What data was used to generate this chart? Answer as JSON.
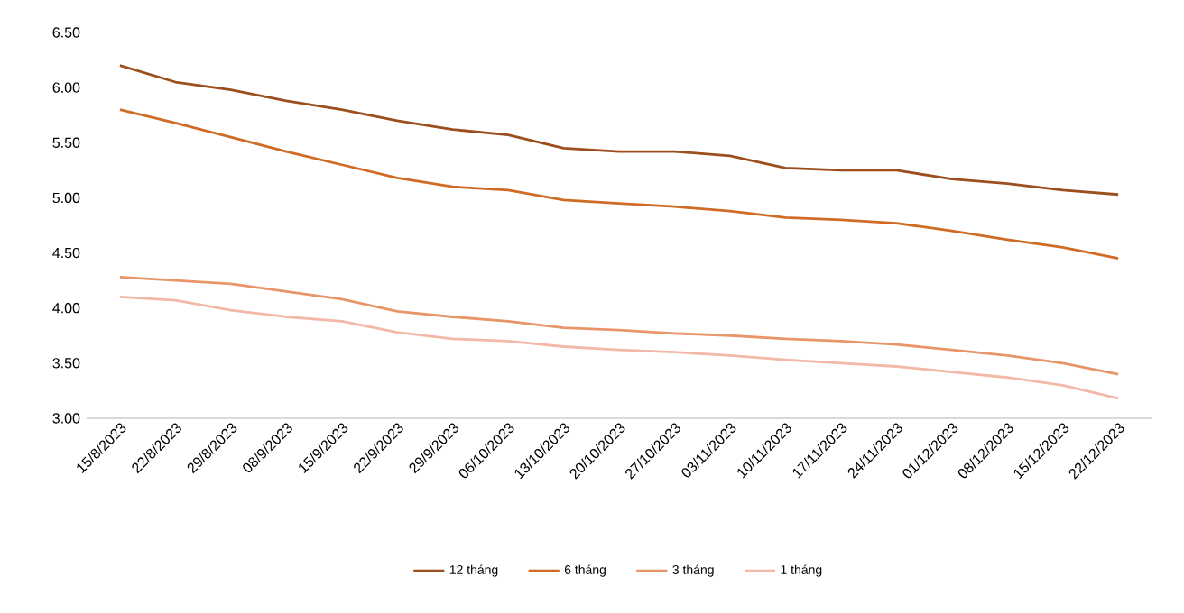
{
  "chart_data": {
    "type": "line",
    "categories": [
      "15/8/2023",
      "22/8/2023",
      "29/8/2023",
      "08/9/2023",
      "15/9/2023",
      "22/9/2023",
      "29/9/2023",
      "06/10/2023",
      "13/10/2023",
      "20/10/2023",
      "27/10/2023",
      "03/11/2023",
      "10/11/2023",
      "17/11/2023",
      "24/11/2023",
      "01/12/2023",
      "08/12/2023",
      "15/12/2023",
      "22/12/2023"
    ],
    "series": [
      {
        "name": "12 tháng",
        "color": "#9c4f1e",
        "values": [
          6.2,
          6.05,
          5.98,
          5.88,
          5.8,
          5.7,
          5.62,
          5.57,
          5.45,
          5.42,
          5.42,
          5.38,
          5.27,
          5.25,
          5.25,
          5.17,
          5.13,
          5.07,
          5.03
        ]
      },
      {
        "name": "6 tháng",
        "color": "#d06b26",
        "values": [
          5.8,
          5.68,
          5.55,
          5.42,
          5.3,
          5.18,
          5.1,
          5.07,
          4.98,
          4.95,
          4.92,
          4.88,
          4.82,
          4.8,
          4.77,
          4.7,
          4.62,
          4.55,
          4.45
        ]
      },
      {
        "name": "3 tháng",
        "color": "#e8956a",
        "values": [
          4.28,
          4.25,
          4.22,
          4.15,
          4.08,
          3.97,
          3.92,
          3.88,
          3.82,
          3.8,
          3.77,
          3.75,
          3.72,
          3.7,
          3.67,
          3.62,
          3.57,
          3.5,
          3.4
        ]
      },
      {
        "name": "1 tháng",
        "color": "#f2b8a8",
        "values": [
          4.1,
          4.07,
          3.98,
          3.92,
          3.88,
          3.78,
          3.72,
          3.7,
          3.65,
          3.62,
          3.6,
          3.57,
          3.53,
          3.5,
          3.47,
          3.42,
          3.37,
          3.3,
          3.18
        ]
      }
    ],
    "ylim": [
      3.0,
      6.5
    ],
    "yticks": [
      {
        "value": 3.0,
        "label": "3.00"
      },
      {
        "value": 3.5,
        "label": "3.50"
      },
      {
        "value": 4.0,
        "label": "4.00"
      },
      {
        "value": 4.5,
        "label": "4.50"
      },
      {
        "value": 5.0,
        "label": "5.00"
      },
      {
        "value": 5.5,
        "label": "5.50"
      },
      {
        "value": 6.0,
        "label": "6.00"
      },
      {
        "value": 6.5,
        "label": "6.50"
      }
    ],
    "legend": "bottom",
    "marker": "none",
    "line_style": "solid"
  }
}
